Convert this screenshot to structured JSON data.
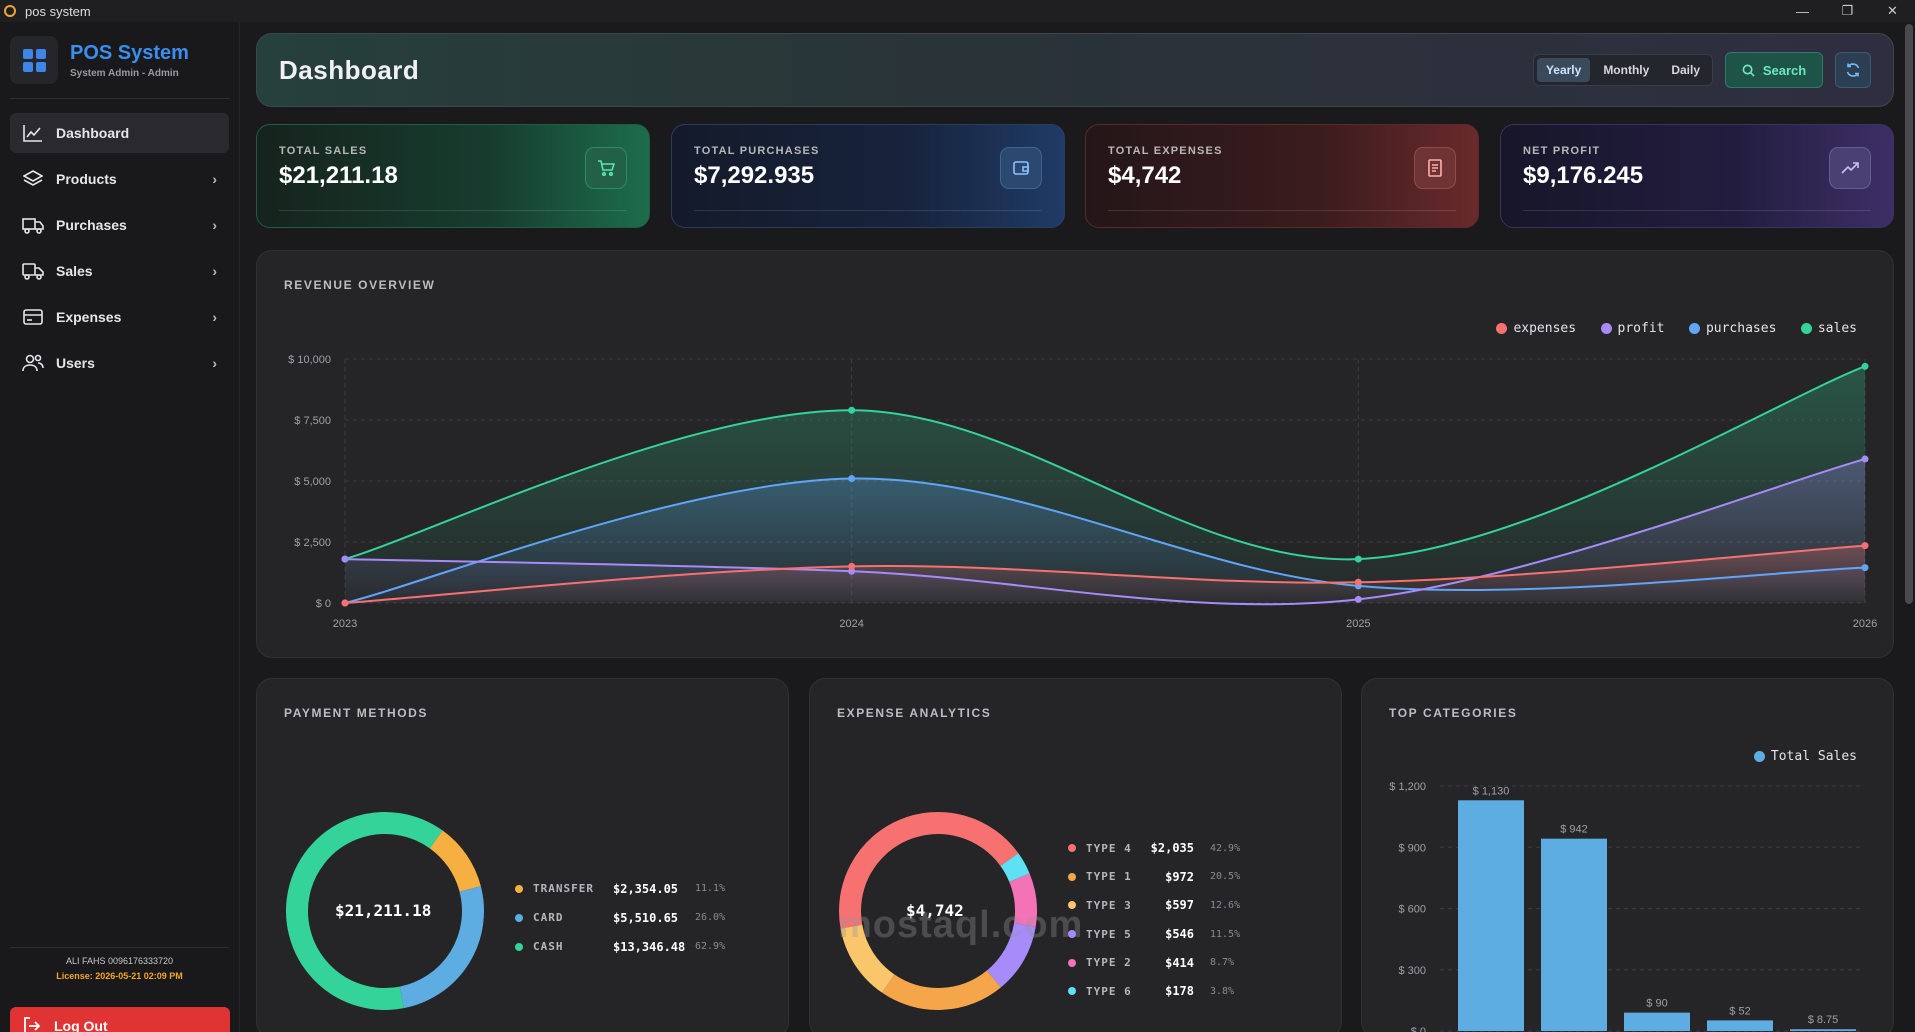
{
  "window": {
    "title": "pos system",
    "controls": {
      "minimize": "—",
      "restore": "❐",
      "close": "✕"
    }
  },
  "sidebar": {
    "brand_title": "POS System",
    "brand_subtitle": "System Admin - Admin",
    "items": [
      {
        "label": "Dashboard",
        "icon": "chart-icon",
        "active": true
      },
      {
        "label": "Products",
        "icon": "layers-icon"
      },
      {
        "label": "Purchases",
        "icon": "truck-icon"
      },
      {
        "label": "Sales",
        "icon": "delivery-icon"
      },
      {
        "label": "Expenses",
        "icon": "card-icon"
      },
      {
        "label": "Users",
        "icon": "users-icon"
      }
    ],
    "footer_user": "ALI FAHS 0096176333720",
    "footer_license": "License: 2026-05-21 02:09 PM",
    "logout_label": "Log Out"
  },
  "header": {
    "title": "Dashboard",
    "periods": [
      "Yearly",
      "Monthly",
      "Daily"
    ],
    "active_period": "Yearly",
    "search_label": "Search"
  },
  "kpis": {
    "sales": {
      "label": "TOTAL SALES",
      "value": "$21,211.18"
    },
    "purchases": {
      "label": "TOTAL PURCHASES",
      "value": "$7,292.935"
    },
    "expenses": {
      "label": "TOTAL EXPENSES",
      "value": "$4,742"
    },
    "profit": {
      "label": "NET PROFIT",
      "value": "$9,176.245"
    }
  },
  "revenue": {
    "title": "REVENUE OVERVIEW",
    "legend": [
      {
        "name": "expenses",
        "color": "#f87171"
      },
      {
        "name": "profit",
        "color": "#a78bfa"
      },
      {
        "name": "purchases",
        "color": "#60a5fa"
      },
      {
        "name": "sales",
        "color": "#34d399"
      }
    ]
  },
  "payment": {
    "title": "PAYMENT METHODS",
    "center": "$21,211.18",
    "rows": [
      {
        "name": "TRANSFER",
        "amount": "$2,354.05",
        "pct": "11.1%",
        "color": "#f5b041"
      },
      {
        "name": "CARD",
        "amount": "$5,510.65",
        "pct": "26.0%",
        "color": "#5dade2"
      },
      {
        "name": "CASH",
        "amount": "$13,346.48",
        "pct": "62.9%",
        "color": "#34d399"
      }
    ]
  },
  "expense": {
    "title": "EXPENSE ANALYTICS",
    "center": "$4,742",
    "watermark": "mostaql.com",
    "rows": [
      {
        "name": "TYPE 4",
        "amount": "$2,035",
        "pct": "42.9%",
        "color": "#f87171"
      },
      {
        "name": "TYPE 1",
        "amount": "$972",
        "pct": "20.5%",
        "color": "#f5a54a"
      },
      {
        "name": "TYPE 3",
        "amount": "$597",
        "pct": "12.6%",
        "color": "#f9c66b"
      },
      {
        "name": "TYPE 5",
        "amount": "$546",
        "pct": "11.5%",
        "color": "#a78bfa"
      },
      {
        "name": "TYPE 2",
        "amount": "$414",
        "pct": "8.7%",
        "color": "#f472b6"
      },
      {
        "name": "TYPE 6",
        "amount": "$178",
        "pct": "3.8%",
        "color": "#5ee0f5"
      }
    ]
  },
  "topcat": {
    "title": "TOP CATEGORIES",
    "legend": "Total Sales"
  },
  "chart_data": [
    {
      "type": "area",
      "title": "REVENUE OVERVIEW",
      "x": [
        "2023",
        "2024",
        "2025",
        "2026"
      ],
      "ylim": [
        0,
        10000
      ],
      "yticks": [
        "$ 0",
        "$ 2,500",
        "$ 5,000",
        "$ 7,500",
        "$ 10,000"
      ],
      "grid": true,
      "legend_position": "top-right",
      "series": [
        {
          "name": "expenses",
          "color": "#f87171",
          "values": [
            0,
            1500,
            850,
            2350
          ]
        },
        {
          "name": "profit",
          "color": "#a78bfa",
          "values": [
            1800,
            1300,
            150,
            5900
          ]
        },
        {
          "name": "purchases",
          "color": "#60a5fa",
          "values": [
            0,
            5100,
            700,
            1450
          ]
        },
        {
          "name": "sales",
          "color": "#34d399",
          "values": [
            1800,
            7900,
            1800,
            9700
          ]
        }
      ]
    },
    {
      "type": "pie",
      "title": "PAYMENT METHODS",
      "labels": [
        "TRANSFER",
        "CARD",
        "CASH"
      ],
      "values": [
        2354.05,
        5510.65,
        13346.48
      ],
      "colors": [
        "#f5b041",
        "#5dade2",
        "#34d399"
      ]
    },
    {
      "type": "pie",
      "title": "EXPENSE ANALYTICS",
      "labels": [
        "TYPE 4",
        "TYPE 1",
        "TYPE 3",
        "TYPE 5",
        "TYPE 2",
        "TYPE 6"
      ],
      "values": [
        2035,
        972,
        597,
        546,
        414,
        178
      ],
      "colors": [
        "#f87171",
        "#f5a54a",
        "#f9c66b",
        "#a78bfa",
        "#f472b6",
        "#5ee0f5"
      ]
    },
    {
      "type": "bar",
      "title": "TOP CATEGORIES",
      "series_name": "Total Sales",
      "values": [
        1130,
        942,
        90,
        52,
        8.75
      ],
      "value_labels": [
        "$ 1,130",
        "$ 942",
        "$ 90",
        "$ 52",
        "$ 8.75"
      ],
      "ylim": [
        0,
        1200
      ],
      "yticks": [
        "$ 0",
        "$ 300",
        "$ 600",
        "$ 900",
        "$ 1,200"
      ],
      "color": "#5dade2"
    }
  ]
}
